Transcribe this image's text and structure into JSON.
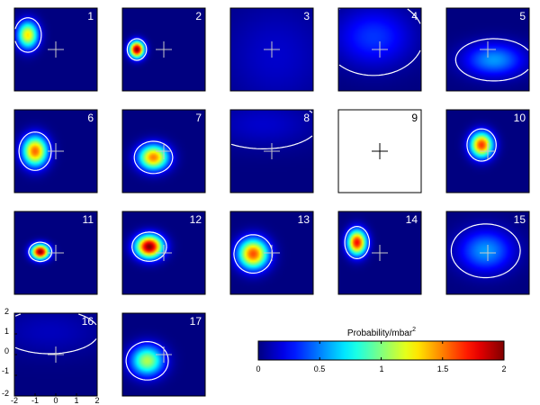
{
  "chart_data": {
    "type": "heatmap",
    "description_units": "Probability/mbar",
    "colorbar": {
      "title": "Probability/mbar",
      "title_superscript": "2",
      "range": [
        0,
        2
      ],
      "ticks": [
        "0",
        "0.5",
        "1",
        "1.5",
        "2"
      ],
      "colormap": "jet"
    },
    "axes": {
      "x_ticks": [
        "-2",
        "-1",
        "0",
        "1",
        "2"
      ],
      "y_ticks": [
        "2",
        "1",
        "0",
        "-1",
        "-2"
      ],
      "xlim": [
        -2,
        2
      ],
      "ylim": [
        -2,
        2
      ],
      "shown_on_panel": "16"
    },
    "panels": [
      {
        "label": "1",
        "peak": 1.3,
        "centers": [
          [
            -1.35,
            0.7
          ]
        ],
        "spreads": [
          [
            0.35,
            0.45
          ]
        ],
        "label_color": "#ffffff",
        "contour": true
      },
      {
        "label": "2",
        "peak": 2.0,
        "centers": [
          [
            -1.3,
            0.0
          ]
        ],
        "spreads": [
          [
            0.25,
            0.28
          ]
        ],
        "label_color": "#ffffff",
        "contour": true
      },
      {
        "label": "3",
        "peak": 0.15,
        "centers": [
          [
            0.2,
            -0.3
          ]
        ],
        "spreads": [
          [
            1.8,
            1.8
          ]
        ],
        "label_color": "#ffffff",
        "contour": false
      },
      {
        "label": "4",
        "peak": 0.35,
        "centers": [
          [
            -0.3,
            0.6
          ]
        ],
        "spreads": [
          [
            1.3,
            1.0
          ]
        ],
        "label_color": "#ffffff",
        "contour": true
      },
      {
        "label": "5",
        "peak": 0.55,
        "centers": [
          [
            0.3,
            -0.5
          ]
        ],
        "spreads": [
          [
            1.0,
            0.55
          ]
        ],
        "label_color": "#ffffff",
        "contour": true
      },
      {
        "label": "6",
        "peak": 1.55,
        "centers": [
          [
            -1.0,
            0.0
          ]
        ],
        "spreads": [
          [
            0.42,
            0.5
          ]
        ],
        "label_color": "#ffffff",
        "contour": true
      },
      {
        "label": "7",
        "peak": 1.5,
        "centers": [
          [
            -0.5,
            -0.3
          ]
        ],
        "spreads": [
          [
            0.5,
            0.42
          ]
        ],
        "label_color": "#ffffff",
        "contour": true
      },
      {
        "label": "8",
        "peak": 0.15,
        "centers": [
          [
            -0.4,
            1.3
          ]
        ],
        "spreads": [
          [
            1.8,
            0.8
          ]
        ],
        "label_color": "#ffffff",
        "contour": true
      },
      {
        "label": "9",
        "peak": 0.0,
        "centers": [],
        "spreads": [],
        "label_color": "#000000",
        "contour": false,
        "blank": true
      },
      {
        "label": "10",
        "peak": 1.65,
        "centers": [
          [
            -0.3,
            0.3
          ]
        ],
        "spreads": [
          [
            0.38,
            0.42
          ]
        ],
        "label_color": "#ffffff",
        "contour": true
      },
      {
        "label": "11",
        "peak": 2.0,
        "centers": [
          [
            -0.75,
            0.05
          ]
        ],
        "spreads": [
          [
            0.3,
            0.25
          ]
        ],
        "label_color": "#ffffff",
        "contour": true
      },
      {
        "label": "12",
        "peak": 2.0,
        "centers": [
          [
            -0.7,
            0.3
          ]
        ],
        "spreads": [
          [
            0.45,
            0.38
          ]
        ],
        "label_color": "#ffffff",
        "contour": true
      },
      {
        "label": "13",
        "peak": 1.6,
        "centers": [
          [
            -0.9,
            -0.05
          ]
        ],
        "spreads": [
          [
            0.5,
            0.5
          ]
        ],
        "label_color": "#ffffff",
        "contour": true
      },
      {
        "label": "14",
        "peak": 1.75,
        "centers": [
          [
            -1.1,
            0.5
          ]
        ],
        "spreads": [
          [
            0.32,
            0.42
          ]
        ],
        "label_color": "#ffffff",
        "contour": true
      },
      {
        "label": "15",
        "peak": 0.55,
        "centers": [
          [
            -0.1,
            0.1
          ]
        ],
        "spreads": [
          [
            0.9,
            0.7
          ]
        ],
        "label_color": "#ffffff",
        "contour": true
      },
      {
        "label": "16",
        "peak": 0.12,
        "centers": [
          [
            -0.3,
            1.1
          ]
        ],
        "spreads": [
          [
            1.8,
            0.8
          ]
        ],
        "label_color": "#ffffff",
        "contour": true
      },
      {
        "label": "17",
        "peak": 1.1,
        "centers": [
          [
            -0.8,
            -0.3
          ]
        ],
        "spreads": [
          [
            0.55,
            0.5
          ]
        ],
        "label_color": "#ffffff",
        "contour": true
      }
    ]
  },
  "colors": {
    "background_low": "#0000a8",
    "contour": "#ffffff",
    "crosshair_on_map": "#c8c8c8",
    "crosshair_on_blank": "#000000",
    "frame": "#000000"
  }
}
